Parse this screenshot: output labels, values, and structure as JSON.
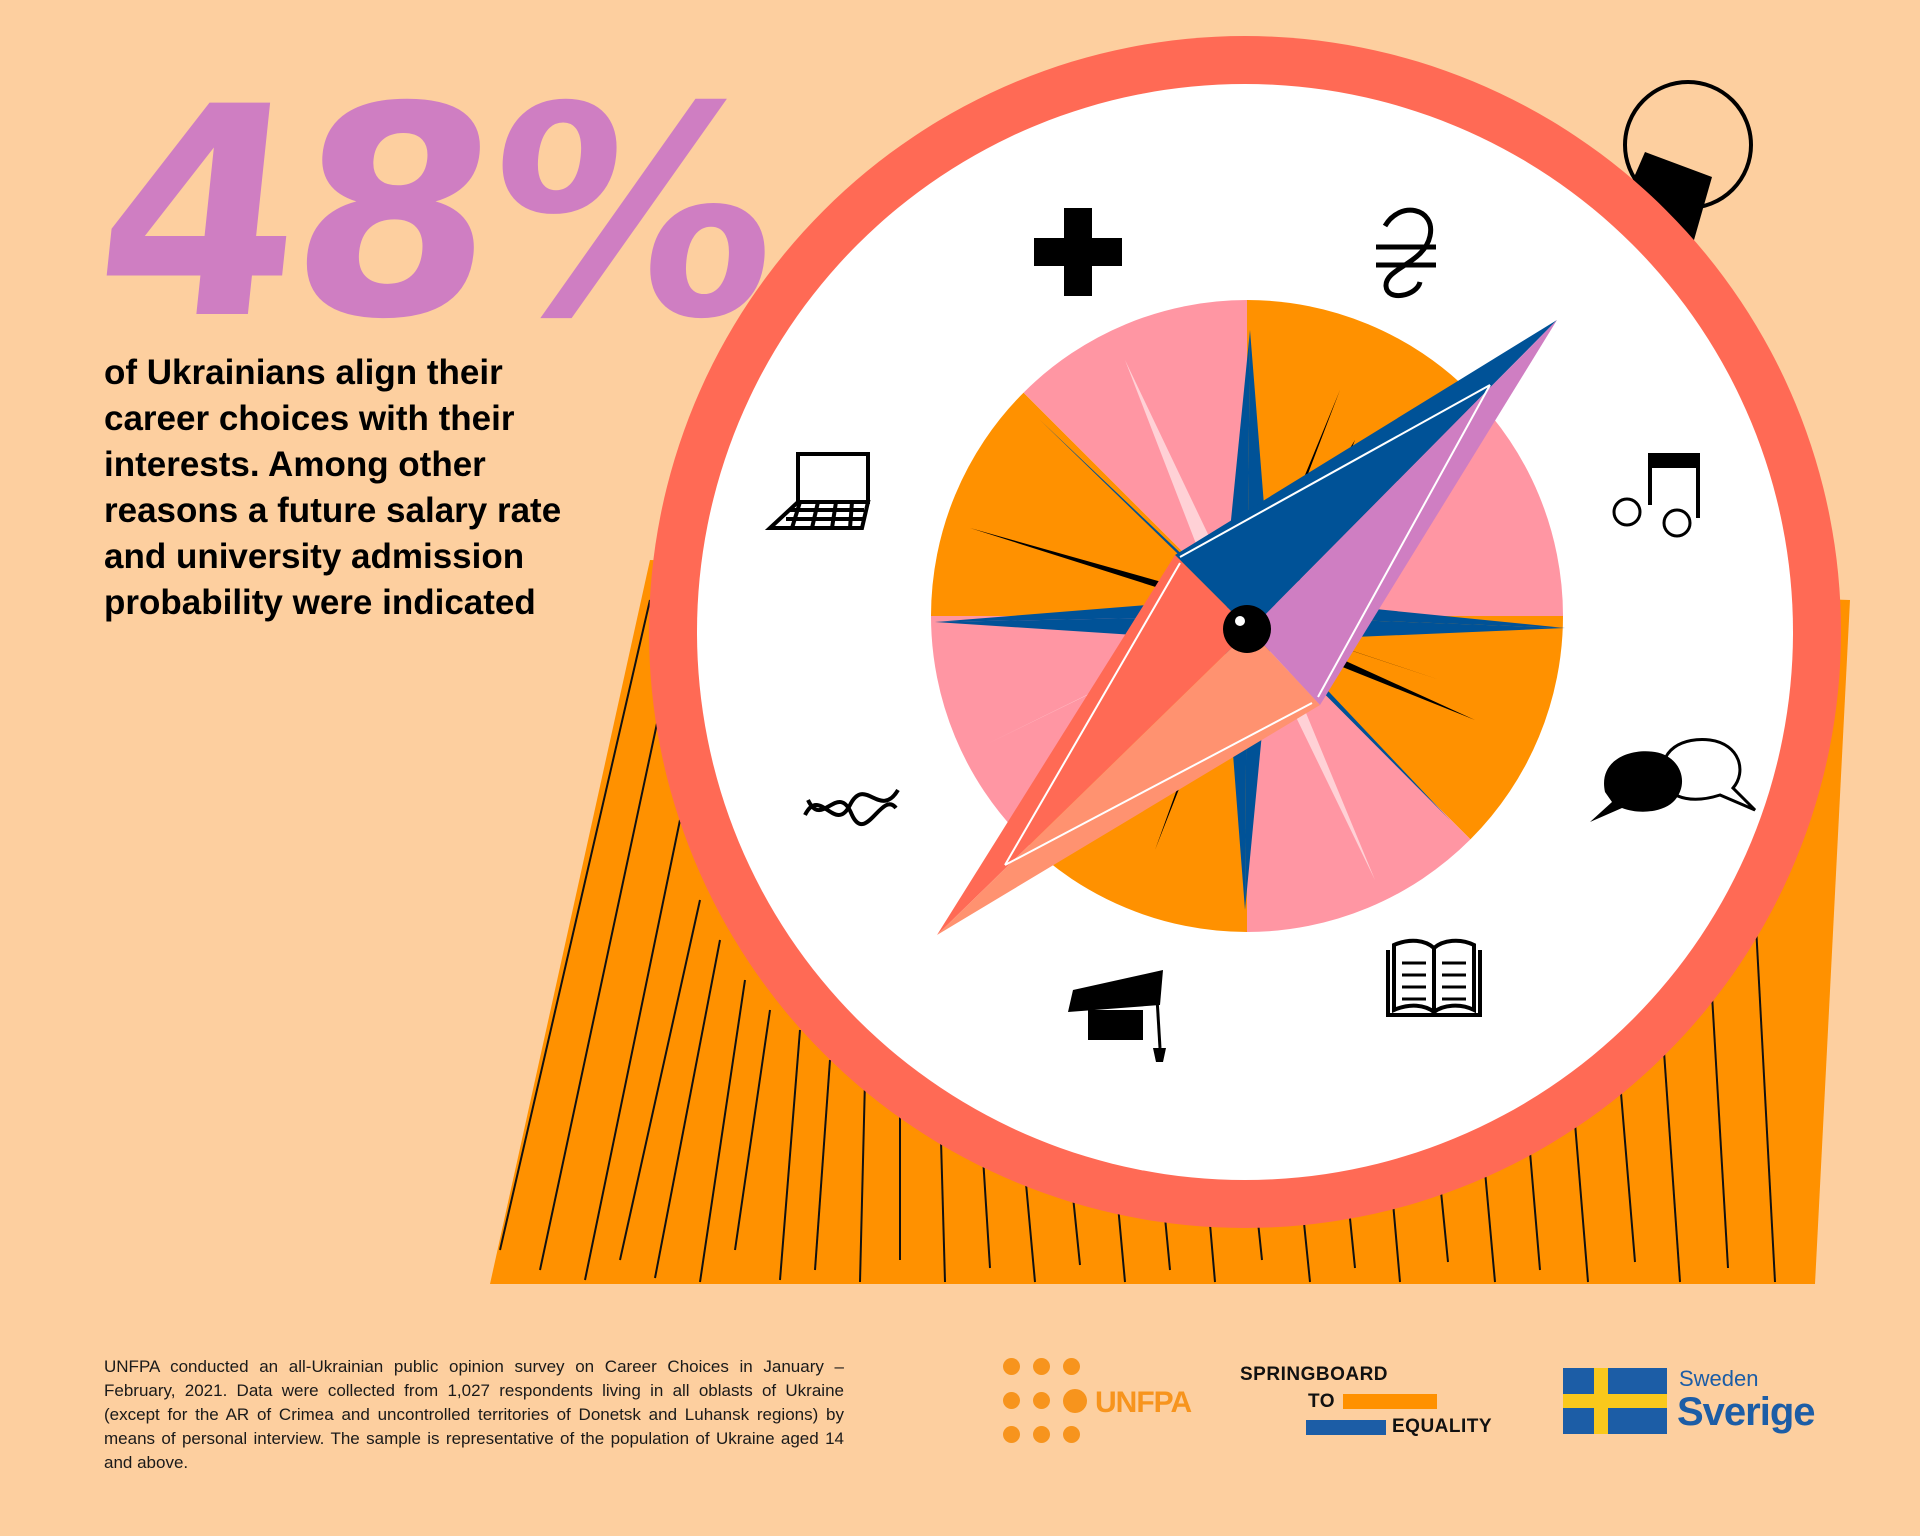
{
  "stat": {
    "value": "48%"
  },
  "headline": "of Ukrainians align their career choices with their interests. Among other reasons a future salary rate and university admission probability were indicated",
  "compass_icons": [
    "medical-cross-icon",
    "hryvnia-icon",
    "laptop-icon",
    "music-note-icon",
    "dna-icon",
    "speech-bubbles-icon",
    "graduation-cap-icon",
    "open-book-icon"
  ],
  "footnote": "UNFPA conducted an all-Ukrainian public opinion survey on Career Choices in January – February, 2021. Data were collected from 1,027 respondents living in all oblasts of Ukraine (except for the AR of Crimea and uncontrolled territories of Donetsk and Luhansk regions) by means of personal interview. The sample is representative of the population of Ukraine aged 14 and above.",
  "logos": {
    "unfpa": "UNFPA",
    "springboard": {
      "line1": "SPRINGBOARD",
      "line2": "TO",
      "line3": "EQUALITY"
    },
    "sweden": {
      "english": "Sweden",
      "swedish": "Sverige"
    }
  },
  "colors": {
    "background": "#FDCF9F",
    "stat": "#CF7EC2",
    "compass_ring": "#FF6A55",
    "orange": "#FF9100",
    "pink": "#FF96A3",
    "blue": "#005297",
    "needle_purple": "#CF7EC2",
    "needle_coral": "#FF6A55",
    "needle_salmon": "#FF9270",
    "unfpa": "#F7941D",
    "sweden_blue": "#1C5DA6",
    "sweden_yellow": "#F9C81B"
  }
}
